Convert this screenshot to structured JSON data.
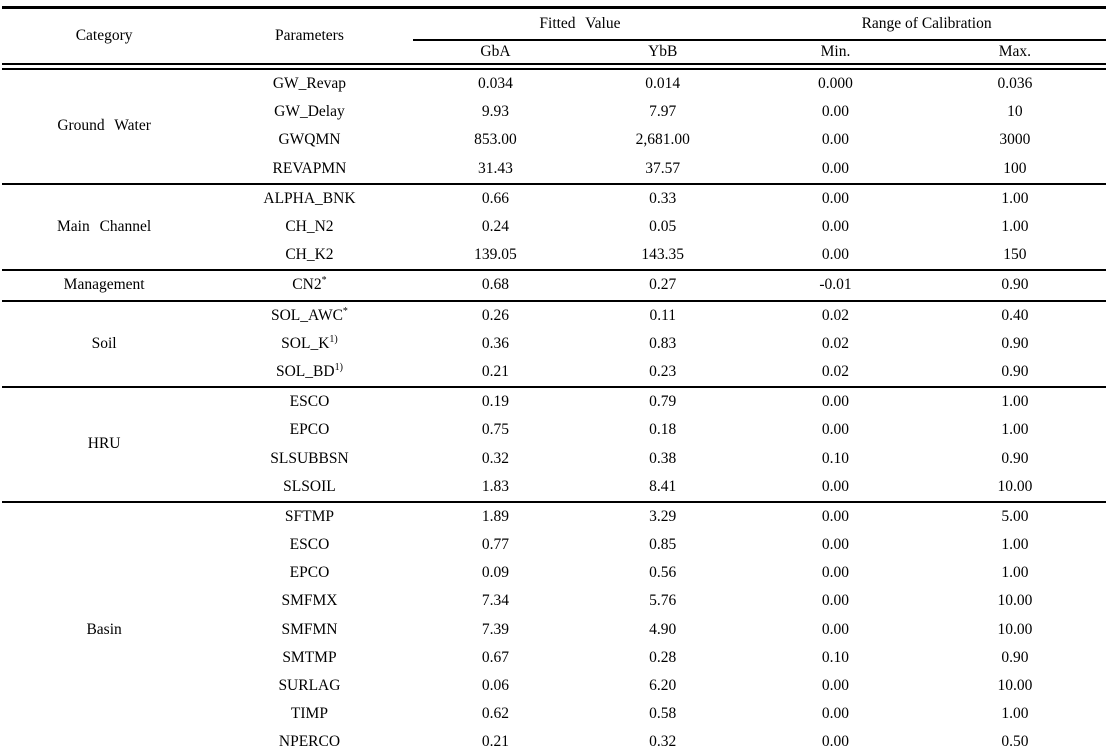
{
  "table": {
    "header": {
      "category": "Category",
      "parameters": "Parameters",
      "fitted_value": "Fitted Value",
      "range_of_calibration": "Range of Calibration",
      "sub_columns": {
        "gba": "GbA",
        "ybb": "YbB",
        "min": "Min.",
        "max": "Max."
      }
    },
    "groups": [
      {
        "category": "Ground Water",
        "rows": [
          {
            "param": "GW_Revap",
            "sup": "",
            "gba": "0.034",
            "ybb": "0.014",
            "min": "0.000",
            "max": "0.036"
          },
          {
            "param": "GW_Delay",
            "sup": "",
            "gba": "9.93",
            "ybb": "7.97",
            "min": "0.00",
            "max": "10"
          },
          {
            "param": "GWQMN",
            "sup": "",
            "gba": "853.00",
            "ybb": "2,681.00",
            "min": "0.00",
            "max": "3000"
          },
          {
            "param": "REVAPMN",
            "sup": "",
            "gba": "31.43",
            "ybb": "37.57",
            "min": "0.00",
            "max": "100"
          }
        ]
      },
      {
        "category": "Main Channel",
        "rows": [
          {
            "param": "ALPHA_BNK",
            "sup": "",
            "gba": "0.66",
            "ybb": "0.33",
            "min": "0.00",
            "max": "1.00"
          },
          {
            "param": "CH_N2",
            "sup": "",
            "gba": "0.24",
            "ybb": "0.05",
            "min": "0.00",
            "max": "1.00"
          },
          {
            "param": "CH_K2",
            "sup": "",
            "gba": "139.05",
            "ybb": "143.35",
            "min": "0.00",
            "max": "150"
          }
        ]
      },
      {
        "category": "Management",
        "rows": [
          {
            "param": "CN2",
            "sup": "*",
            "gba": "0.68",
            "ybb": "0.27",
            "min": "-0.01",
            "max": "0.90"
          }
        ]
      },
      {
        "category": "Soil",
        "rows": [
          {
            "param": "SOL_AWC",
            "sup": "*",
            "gba": "0.26",
            "ybb": "0.11",
            "min": "0.02",
            "max": "0.40"
          },
          {
            "param": "SOL_K",
            "sup": "1)",
            "gba": "0.36",
            "ybb": "0.83",
            "min": "0.02",
            "max": "0.90"
          },
          {
            "param": "SOL_BD",
            "sup": "1)",
            "gba": "0.21",
            "ybb": "0.23",
            "min": "0.02",
            "max": "0.90"
          }
        ]
      },
      {
        "category": "HRU",
        "rows": [
          {
            "param": "ESCO",
            "sup": "",
            "gba": "0.19",
            "ybb": "0.79",
            "min": "0.00",
            "max": "1.00"
          },
          {
            "param": "EPCO",
            "sup": "",
            "gba": "0.75",
            "ybb": "0.18",
            "min": "0.00",
            "max": "1.00"
          },
          {
            "param": "SLSUBBSN",
            "sup": "",
            "gba": "0.32",
            "ybb": "0.38",
            "min": "0.10",
            "max": "0.90"
          },
          {
            "param": "SLSOIL",
            "sup": "",
            "gba": "1.83",
            "ybb": "8.41",
            "min": "0.00",
            "max": "10.00"
          }
        ]
      },
      {
        "category": "Basin",
        "rows": [
          {
            "param": "SFTMP",
            "sup": "",
            "gba": "1.89",
            "ybb": "3.29",
            "min": "0.00",
            "max": "5.00"
          },
          {
            "param": "ESCO",
            "sup": "",
            "gba": "0.77",
            "ybb": "0.85",
            "min": "0.00",
            "max": "1.00"
          },
          {
            "param": "EPCO",
            "sup": "",
            "gba": "0.09",
            "ybb": "0.56",
            "min": "0.00",
            "max": "1.00"
          },
          {
            "param": "SMFMX",
            "sup": "",
            "gba": "7.34",
            "ybb": "5.76",
            "min": "0.00",
            "max": "10.00"
          },
          {
            "param": "SMFMN",
            "sup": "",
            "gba": "7.39",
            "ybb": "4.90",
            "min": "0.00",
            "max": "10.00"
          },
          {
            "param": "SMTMP",
            "sup": "",
            "gba": "0.67",
            "ybb": "0.28",
            "min": "0.10",
            "max": "0.90"
          },
          {
            "param": "SURLAG",
            "sup": "",
            "gba": "0.06",
            "ybb": "6.20",
            "min": "0.00",
            "max": "10.00"
          },
          {
            "param": "TIMP",
            "sup": "",
            "gba": "0.62",
            "ybb": "0.58",
            "min": "0.00",
            "max": "1.00"
          },
          {
            "param": "NPERCO",
            "sup": "",
            "gba": "0.21",
            "ybb": "0.32",
            "min": "0.00",
            "max": "0.50"
          }
        ]
      }
    ]
  }
}
